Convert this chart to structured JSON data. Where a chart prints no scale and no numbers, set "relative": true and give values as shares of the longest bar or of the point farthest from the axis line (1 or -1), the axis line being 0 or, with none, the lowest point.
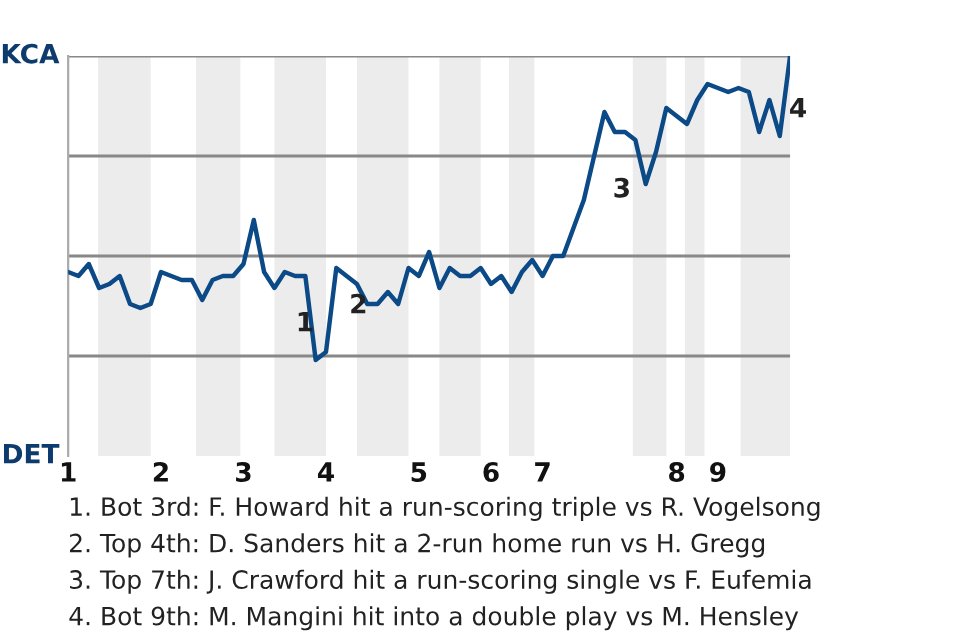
{
  "chart_data": {
    "type": "line",
    "relative": true,
    "categories": [
      "1",
      null,
      null,
      null,
      null,
      null,
      null,
      null,
      null,
      "2",
      null,
      null,
      null,
      null,
      null,
      null,
      null,
      "3",
      null,
      null,
      null,
      null,
      null,
      null,
      null,
      "4",
      null,
      null,
      null,
      null,
      null,
      null,
      null,
      null,
      "5",
      null,
      null,
      null,
      null,
      null,
      null,
      "6",
      null,
      null,
      null,
      null,
      "7",
      null,
      null,
      null,
      null,
      null,
      null,
      null,
      null,
      null,
      null,
      null,
      null,
      "8",
      null,
      null,
      null,
      "9",
      null,
      null,
      null,
      null,
      null,
      null,
      null
    ],
    "series": [
      {
        "color": "#0b4a86",
        "values": [
          0.46,
          0.45,
          0.48,
          0.42,
          0.43,
          0.45,
          0.38,
          0.37,
          0.38,
          0.46,
          0.45,
          0.44,
          0.44,
          0.39,
          0.44,
          0.45,
          0.45,
          0.48,
          0.59,
          0.46,
          0.42,
          0.46,
          0.45,
          0.45,
          0.24,
          0.26,
          0.47,
          0.45,
          0.43,
          0.38,
          0.38,
          0.41,
          0.38,
          0.47,
          0.45,
          0.51,
          0.42,
          0.47,
          0.45,
          0.45,
          0.47,
          0.43,
          0.45,
          0.41,
          0.46,
          0.49,
          0.45,
          0.5,
          0.5,
          0.57,
          0.64,
          0.75,
          0.86,
          0.81,
          0.81,
          0.79,
          0.68,
          0.76,
          0.87,
          0.85,
          0.83,
          0.89,
          0.93,
          0.92,
          0.91,
          0.92,
          0.91,
          0.81,
          0.89,
          0.8,
          1.0
        ]
      }
    ],
    "grid": false,
    "legend": false,
    "marker": "none",
    "line_style": "solid",
    "ref_lines": [
      {
        "axis": "y",
        "value": 0.25,
        "color": "#888888"
      },
      {
        "axis": "y",
        "value": 0.5,
        "color": "#888888"
      },
      {
        "axis": "y",
        "value": 0.75,
        "color": "#888888"
      },
      {
        "axis": "y",
        "value": 1,
        "color": "#888888"
      }
    ],
    "annotations": [
      "1",
      "2",
      "3",
      "4",
      "KCA",
      "DET",
      "1. Bot 3rd: F. Howard hit a run-scoring triple vs R. Vogelsong",
      "2. Top 4th: D. Sanders hit a 2-run home run vs H. Gregg",
      "3. Top 7th: J. Crawford hit a run-scoring single vs F. Eufemia",
      "4. Bot 9th: M. Mangini hit into a double play vs M. Hensley"
    ]
  }
}
